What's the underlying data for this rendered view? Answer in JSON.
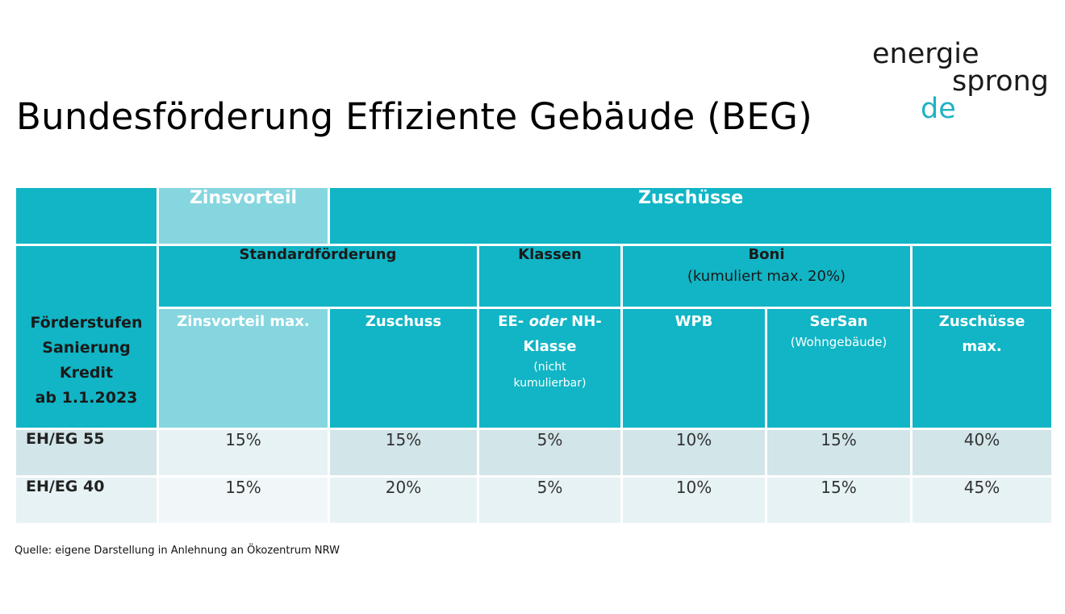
{
  "title": "Bundesförderung Effiziente Gebäude (BEG)",
  "logo": {
    "line1": "energie",
    "line2": "sprong",
    "line3": "de",
    "accent_color": "#1fb3c3"
  },
  "colors": {
    "teal": "#11b5c5",
    "light_teal": "#86d6df"
  },
  "table": {
    "group_zinsvorteil": "Zinsvorteil",
    "group_zuschuesse": "Zuschüsse",
    "stub": [
      "Förderstufen",
      "Sanierung",
      "Kredit",
      "ab 1.1.2023"
    ],
    "standardfoerderung": "Standardförderung",
    "klassen": "Klassen",
    "boni": "Boni",
    "boni_sub": "(kumuliert max. 20%)",
    "col_zinsvorteil_max": "Zinsvorteil max.",
    "col_zuschuss": "Zuschuss",
    "col_klasse_part1": "EE- ",
    "col_klasse_oder": "oder",
    "col_klasse_part2": " NH-",
    "col_klasse_line2": "Klasse",
    "col_klasse_note1": "(nicht",
    "col_klasse_note2": "kumulierbar)",
    "col_wpb": "WPB",
    "col_sersan": "SerSan",
    "col_sersan_sub": "(Wohngebäude)",
    "col_max_line1": "Zuschüsse",
    "col_max_line2": "max.",
    "rows": [
      {
        "label": "EH/EG 55",
        "values": [
          "15%",
          "15%",
          "5%",
          "10%",
          "15%",
          "40%"
        ]
      },
      {
        "label": "EH/EG 40",
        "values": [
          "15%",
          "20%",
          "5%",
          "10%",
          "15%",
          "45%"
        ]
      }
    ]
  },
  "source": "Quelle: eigene Darstellung in Anlehnung an Ökozentrum NRW"
}
